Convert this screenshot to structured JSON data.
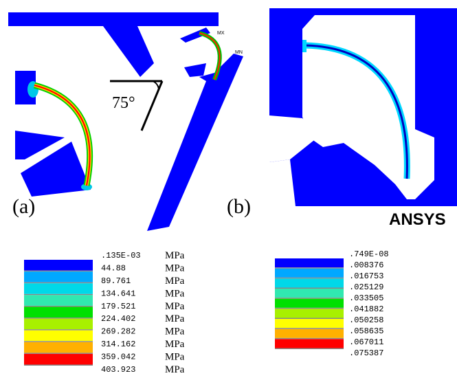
{
  "panels": [
    {
      "label": "(a)"
    },
    {
      "label": "(b)"
    }
  ],
  "angle_label": "75°",
  "logo": "ANSYS",
  "markers": [
    "MX",
    "MN"
  ],
  "legends": [
    {
      "colors": [
        "#0000ff",
        "#00a8ff",
        "#00d8e8",
        "#30e8b0",
        "#00e000",
        "#a8f000",
        "#ffff00",
        "#ffb000",
        "#ff0000"
      ],
      "labels": [
        ".135E-03",
        "44.88",
        "89.761",
        "134.641",
        "179.521",
        "224.402",
        "269.282",
        "314.162",
        "359.042",
        "403.923"
      ],
      "units": [
        "MPa",
        "MPa",
        "MPa",
        "MPa",
        "MPa",
        "MPa",
        "MPa",
        "MPa",
        "MPa",
        "MPa"
      ]
    },
    {
      "colors": [
        "#0000ff",
        "#00a8ff",
        "#00d8e8",
        "#30e8b0",
        "#00e000",
        "#a8f000",
        "#ffff00",
        "#ffb000",
        "#ff0000"
      ],
      "labels": [
        ".749E-08",
        ".008376",
        ".016753",
        ".025129",
        ".033505",
        ".041882",
        ".050258",
        ".058635",
        ".067011",
        ".075387"
      ]
    }
  ]
}
